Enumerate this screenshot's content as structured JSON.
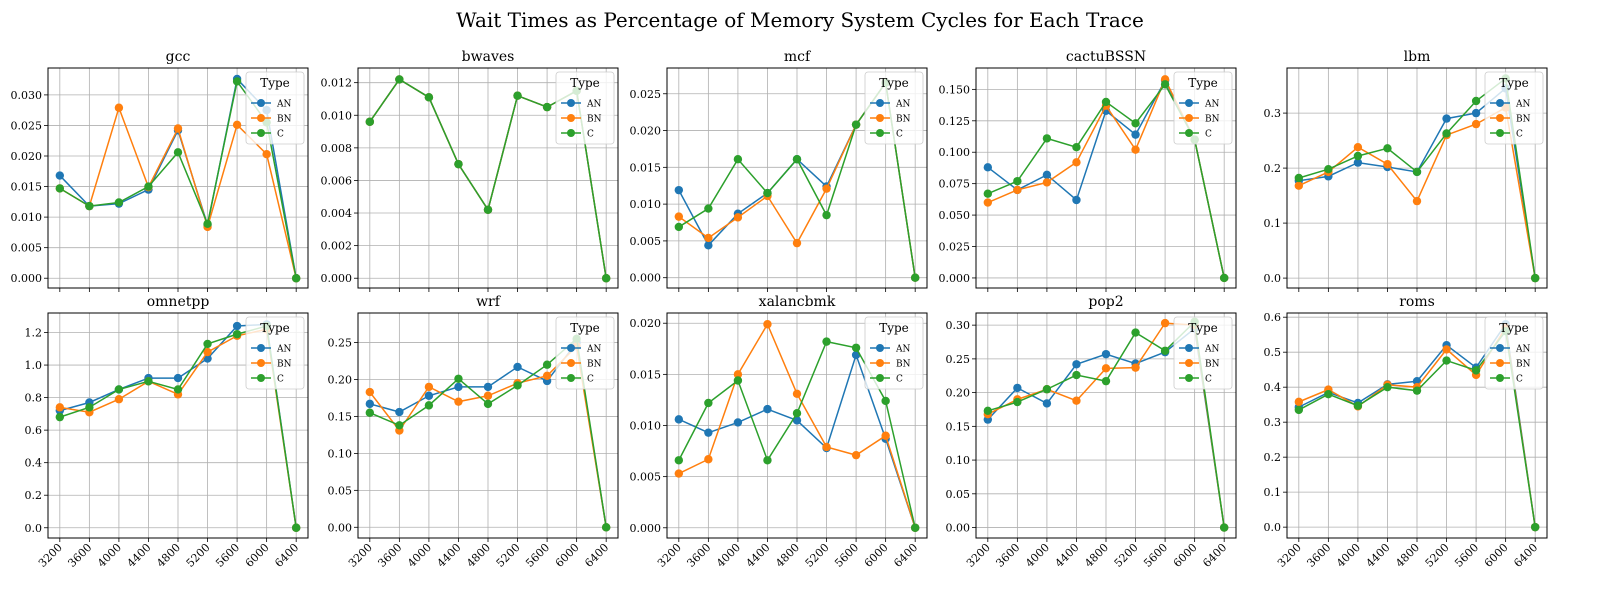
{
  "figure": {
    "title": "Wait Times as Percentage of Memory System Cycles for Each Trace"
  },
  "legend": {
    "title": "Type",
    "entries": [
      {
        "name": "AN",
        "color": "#1f77b4"
      },
      {
        "name": "BN",
        "color": "#ff7f0e"
      },
      {
        "name": "C",
        "color": "#2ca02c"
      }
    ]
  },
  "chart_data": [
    {
      "type": "line",
      "title": "gcc",
      "x": [
        3200,
        3600,
        4000,
        4400,
        4800,
        5200,
        5600,
        6000,
        6400
      ],
      "ylim": [
        -0.0016,
        0.0344
      ],
      "yticks": [
        "0.000",
        "0.005",
        "0.010",
        "0.015",
        "0.020",
        "0.025",
        "0.030"
      ],
      "ytick_values": [
        0,
        0.005,
        0.01,
        0.015,
        0.02,
        0.025,
        0.03
      ],
      "grid": true,
      "legend_position": "top-right",
      "series": [
        {
          "name": "AN",
          "values": [
            0.0168,
            0.0118,
            0.0122,
            0.0145,
            0.0242,
            0.0087,
            0.0326,
            0.0275,
            0.0
          ]
        },
        {
          "name": "BN",
          "values": [
            0.0147,
            0.0118,
            0.0279,
            0.0149,
            0.0245,
            0.0084,
            0.0251,
            0.0203,
            0.0
          ]
        },
        {
          "name": "C",
          "values": [
            0.0147,
            0.0118,
            0.0124,
            0.015,
            0.0206,
            0.0089,
            0.0322,
            0.0255,
            0.0
          ]
        }
      ]
    },
    {
      "type": "line",
      "title": "bwaves",
      "x": [
        3200,
        3600,
        4000,
        4400,
        4800,
        5200,
        5600,
        6000,
        6400
      ],
      "ylim": [
        -0.0006,
        0.0129
      ],
      "yticks": [
        "0.000",
        "0.002",
        "0.004",
        "0.006",
        "0.008",
        "0.010",
        "0.012"
      ],
      "ytick_values": [
        0,
        0.002,
        0.004,
        0.006,
        0.008,
        0.01,
        0.012
      ],
      "grid": true,
      "legend_position": "top-right",
      "series": [
        {
          "name": "AN",
          "values": [
            0.0096,
            0.0122,
            0.0111,
            0.007,
            0.0042,
            0.0112,
            0.0105,
            0.0115,
            0.0
          ]
        },
        {
          "name": "BN",
          "values": [
            0.0096,
            0.0122,
            0.0111,
            0.007,
            0.0042,
            0.0112,
            0.0105,
            0.0115,
            0.0
          ]
        },
        {
          "name": "C",
          "values": [
            0.0096,
            0.0122,
            0.0111,
            0.007,
            0.0042,
            0.0112,
            0.0105,
            0.0115,
            0.0
          ]
        }
      ]
    },
    {
      "type": "line",
      "title": "mcf",
      "x": [
        3200,
        3600,
        4000,
        4400,
        4800,
        5200,
        5600,
        6000,
        6400
      ],
      "ylim": [
        -0.0014,
        0.0285
      ],
      "yticks": [
        "0.000",
        "0.005",
        "0.010",
        "0.015",
        "0.020",
        "0.025"
      ],
      "ytick_values": [
        0,
        0.005,
        0.01,
        0.015,
        0.02,
        0.025
      ],
      "grid": true,
      "legend_position": "top-right",
      "series": [
        {
          "name": "AN",
          "values": [
            0.0119,
            0.0044,
            0.0087,
            0.0115,
            0.0161,
            0.0124,
            0.0208,
            0.0265,
            0.0
          ]
        },
        {
          "name": "BN",
          "values": [
            0.0083,
            0.0054,
            0.0082,
            0.0111,
            0.0047,
            0.0121,
            0.0208,
            0.0265,
            0.0
          ]
        },
        {
          "name": "C",
          "values": [
            0.0069,
            0.0094,
            0.0161,
            0.0115,
            0.0161,
            0.0085,
            0.0208,
            0.0265,
            0.0
          ]
        }
      ]
    },
    {
      "type": "line",
      "title": "cactuBSSN",
      "x": [
        3200,
        3600,
        4000,
        4400,
        4800,
        5200,
        5600,
        6000,
        6400
      ],
      "ylim": [
        -0.008,
        0.167
      ],
      "yticks": [
        "0.000",
        "0.025",
        "0.050",
        "0.075",
        "0.100",
        "0.125",
        "0.150"
      ],
      "ytick_values": [
        0,
        0.025,
        0.05,
        0.075,
        0.1,
        0.125,
        0.15
      ],
      "grid": true,
      "legend_position": "top-right",
      "series": [
        {
          "name": "AN",
          "values": [
            0.088,
            0.07,
            0.082,
            0.062,
            0.133,
            0.114,
            0.157,
            0.11,
            0.0
          ]
        },
        {
          "name": "BN",
          "values": [
            0.06,
            0.07,
            0.076,
            0.092,
            0.137,
            0.102,
            0.158,
            0.11,
            0.0
          ]
        },
        {
          "name": "C",
          "values": [
            0.067,
            0.077,
            0.111,
            0.104,
            0.14,
            0.123,
            0.154,
            0.11,
            0.0
          ]
        }
      ]
    },
    {
      "type": "line",
      "title": "lbm",
      "x": [
        3200,
        3600,
        4000,
        4400,
        4800,
        5200,
        5600,
        6000,
        6400
      ],
      "ylim": [
        -0.018,
        0.382
      ],
      "yticks": [
        "0.0",
        "0.1",
        "0.2",
        "0.3"
      ],
      "ytick_values": [
        0,
        0.1,
        0.2,
        0.3
      ],
      "grid": true,
      "legend_position": "top-right",
      "series": [
        {
          "name": "AN",
          "values": [
            0.177,
            0.185,
            0.21,
            0.202,
            0.193,
            0.29,
            0.3,
            0.345,
            0.0
          ]
        },
        {
          "name": "BN",
          "values": [
            0.168,
            0.193,
            0.238,
            0.207,
            0.14,
            0.26,
            0.28,
            0.31,
            0.0
          ]
        },
        {
          "name": "C",
          "values": [
            0.182,
            0.198,
            0.222,
            0.236,
            0.193,
            0.263,
            0.322,
            0.363,
            0.0
          ]
        }
      ]
    },
    {
      "type": "line",
      "title": "omnetpp",
      "x": [
        3200,
        3600,
        4000,
        4400,
        4800,
        5200,
        5600,
        6000,
        6400
      ],
      "ylim": [
        -0.063,
        1.32
      ],
      "yticks": [
        "0.0",
        "0.2",
        "0.4",
        "0.6",
        "0.8",
        "1.0",
        "1.2"
      ],
      "ytick_values": [
        0,
        0.2,
        0.4,
        0.6,
        0.8,
        1.0,
        1.2
      ],
      "grid": true,
      "legend_position": "top-right",
      "series": [
        {
          "name": "AN",
          "values": [
            0.72,
            0.77,
            0.85,
            0.92,
            0.92,
            1.04,
            1.24,
            1.25,
            0.0
          ]
        },
        {
          "name": "BN",
          "values": [
            0.74,
            0.71,
            0.79,
            0.9,
            0.82,
            1.08,
            1.18,
            1.22,
            0.0
          ]
        },
        {
          "name": "C",
          "values": [
            0.68,
            0.74,
            0.85,
            0.9,
            0.85,
            1.13,
            1.19,
            1.24,
            0.0
          ]
        }
      ]
    },
    {
      "type": "line",
      "title": "wrf",
      "x": [
        3200,
        3600,
        4000,
        4400,
        4800,
        5200,
        5600,
        6000,
        6400
      ],
      "ylim": [
        -0.0145,
        0.29
      ],
      "yticks": [
        "0.00",
        "0.05",
        "0.10",
        "0.15",
        "0.20",
        "0.25"
      ],
      "ytick_values": [
        0,
        0.05,
        0.1,
        0.15,
        0.2,
        0.25
      ],
      "grid": true,
      "legend_position": "top-right",
      "series": [
        {
          "name": "AN",
          "values": [
            0.167,
            0.156,
            0.178,
            0.19,
            0.19,
            0.217,
            0.198,
            0.25,
            0.0
          ]
        },
        {
          "name": "BN",
          "values": [
            0.183,
            0.131,
            0.19,
            0.17,
            0.178,
            0.195,
            0.205,
            0.245,
            0.0
          ]
        },
        {
          "name": "C",
          "values": [
            0.155,
            0.138,
            0.165,
            0.201,
            0.167,
            0.192,
            0.22,
            0.255,
            0.0
          ]
        }
      ]
    },
    {
      "type": "line",
      "title": "xalancbmk",
      "x": [
        3200,
        3600,
        4000,
        4400,
        4800,
        5200,
        5600,
        6000,
        6400
      ],
      "ylim": [
        -0.001,
        0.021
      ],
      "yticks": [
        "0.000",
        "0.005",
        "0.010",
        "0.015",
        "0.020"
      ],
      "ytick_values": [
        0,
        0.005,
        0.01,
        0.015,
        0.02
      ],
      "grid": true,
      "legend_position": "top-right",
      "series": [
        {
          "name": "AN",
          "values": [
            0.0106,
            0.0093,
            0.0103,
            0.0116,
            0.0105,
            0.0078,
            0.0169,
            0.0087,
            0.0
          ]
        },
        {
          "name": "BN",
          "values": [
            0.0053,
            0.0067,
            0.015,
            0.0199,
            0.0131,
            0.0079,
            0.0071,
            0.009,
            0.0
          ]
        },
        {
          "name": "C",
          "values": [
            0.0066,
            0.0122,
            0.0144,
            0.0066,
            0.0112,
            0.0182,
            0.0176,
            0.0124,
            0.0
          ]
        }
      ]
    },
    {
      "type": "line",
      "title": "pop2",
      "x": [
        3200,
        3600,
        4000,
        4400,
        4800,
        5200,
        5600,
        6000,
        6400
      ],
      "ylim": [
        -0.0155,
        0.318
      ],
      "yticks": [
        "0.00",
        "0.05",
        "0.10",
        "0.15",
        "0.20",
        "0.25",
        "0.30"
      ],
      "ytick_values": [
        0,
        0.05,
        0.1,
        0.15,
        0.2,
        0.25,
        0.3
      ],
      "grid": true,
      "legend_position": "top-right",
      "series": [
        {
          "name": "AN",
          "values": [
            0.16,
            0.207,
            0.184,
            0.242,
            0.257,
            0.243,
            0.26,
            0.295,
            0.0
          ]
        },
        {
          "name": "BN",
          "values": [
            0.168,
            0.19,
            0.205,
            0.188,
            0.236,
            0.237,
            0.303,
            0.3,
            0.0
          ]
        },
        {
          "name": "C",
          "values": [
            0.173,
            0.186,
            0.205,
            0.226,
            0.217,
            0.289,
            0.262,
            0.305,
            0.0
          ]
        }
      ]
    },
    {
      "type": "line",
      "title": "roms",
      "x": [
        3200,
        3600,
        4000,
        4400,
        4800,
        5200,
        5600,
        6000,
        6400
      ],
      "ylim": [
        -0.031,
        0.612
      ],
      "yticks": [
        "0.0",
        "0.1",
        "0.2",
        "0.3",
        "0.4",
        "0.5",
        "0.6"
      ],
      "ytick_values": [
        0,
        0.1,
        0.2,
        0.3,
        0.4,
        0.5,
        0.6
      ],
      "grid": true,
      "legend_position": "top-right",
      "series": [
        {
          "name": "AN",
          "values": [
            0.343,
            0.385,
            0.355,
            0.408,
            0.417,
            0.52,
            0.456,
            0.58,
            0.0
          ]
        },
        {
          "name": "BN",
          "values": [
            0.358,
            0.393,
            0.345,
            0.407,
            0.4,
            0.508,
            0.435,
            0.57,
            0.0
          ]
        },
        {
          "name": "C",
          "values": [
            0.335,
            0.38,
            0.347,
            0.4,
            0.39,
            0.476,
            0.448,
            0.56,
            0.0
          ]
        }
      ]
    }
  ]
}
